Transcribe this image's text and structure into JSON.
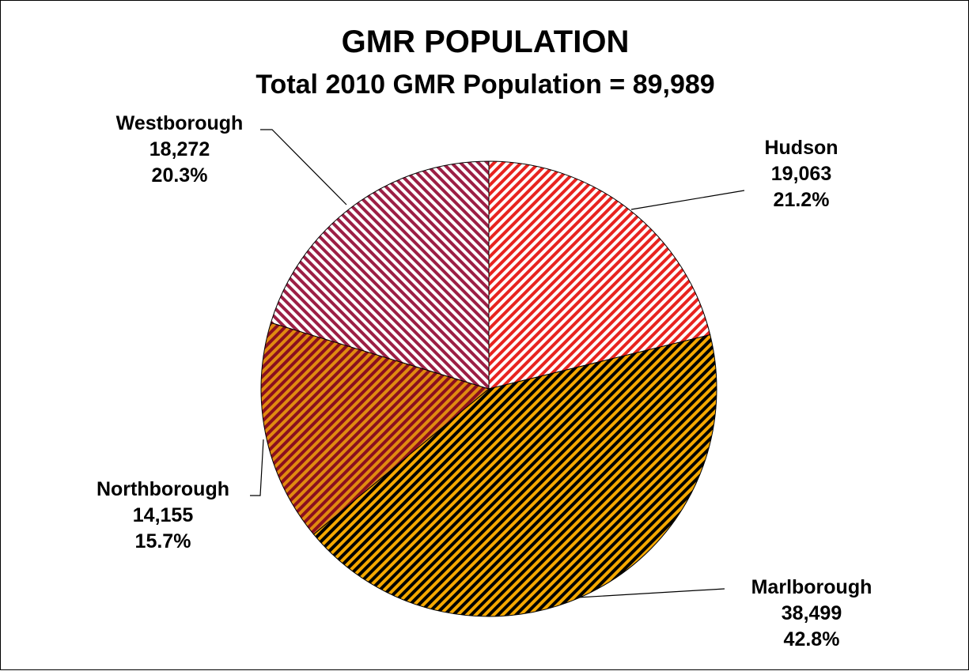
{
  "chart_data": {
    "type": "pie",
    "title": "GMR POPULATION",
    "subtitle": "Total 2010 GMR Population = 89,989",
    "slices": [
      {
        "name": "Hudson",
        "value_label": "19,063",
        "percent_label": "21.2%",
        "value": 19063,
        "percent": 21.2,
        "color_a": "#e8231f",
        "color_b": "#ffffff"
      },
      {
        "name": "Marlborough",
        "value_label": "38,499",
        "percent_label": "42.8%",
        "value": 38499,
        "percent": 42.8,
        "color_a": "#000000",
        "color_b": "#f5a800"
      },
      {
        "name": "Northborough",
        "value_label": "14,155",
        "percent_label": "15.7%",
        "value": 14155,
        "percent": 15.7,
        "color_a": "#8b0f1e",
        "color_b": "#e08a10"
      },
      {
        "name": "Westborough",
        "value_label": "18,272",
        "percent_label": "20.3%",
        "value": 18272,
        "percent": 20.3,
        "color_a": "#9c1f45",
        "color_b": "#ffffff"
      }
    ]
  }
}
